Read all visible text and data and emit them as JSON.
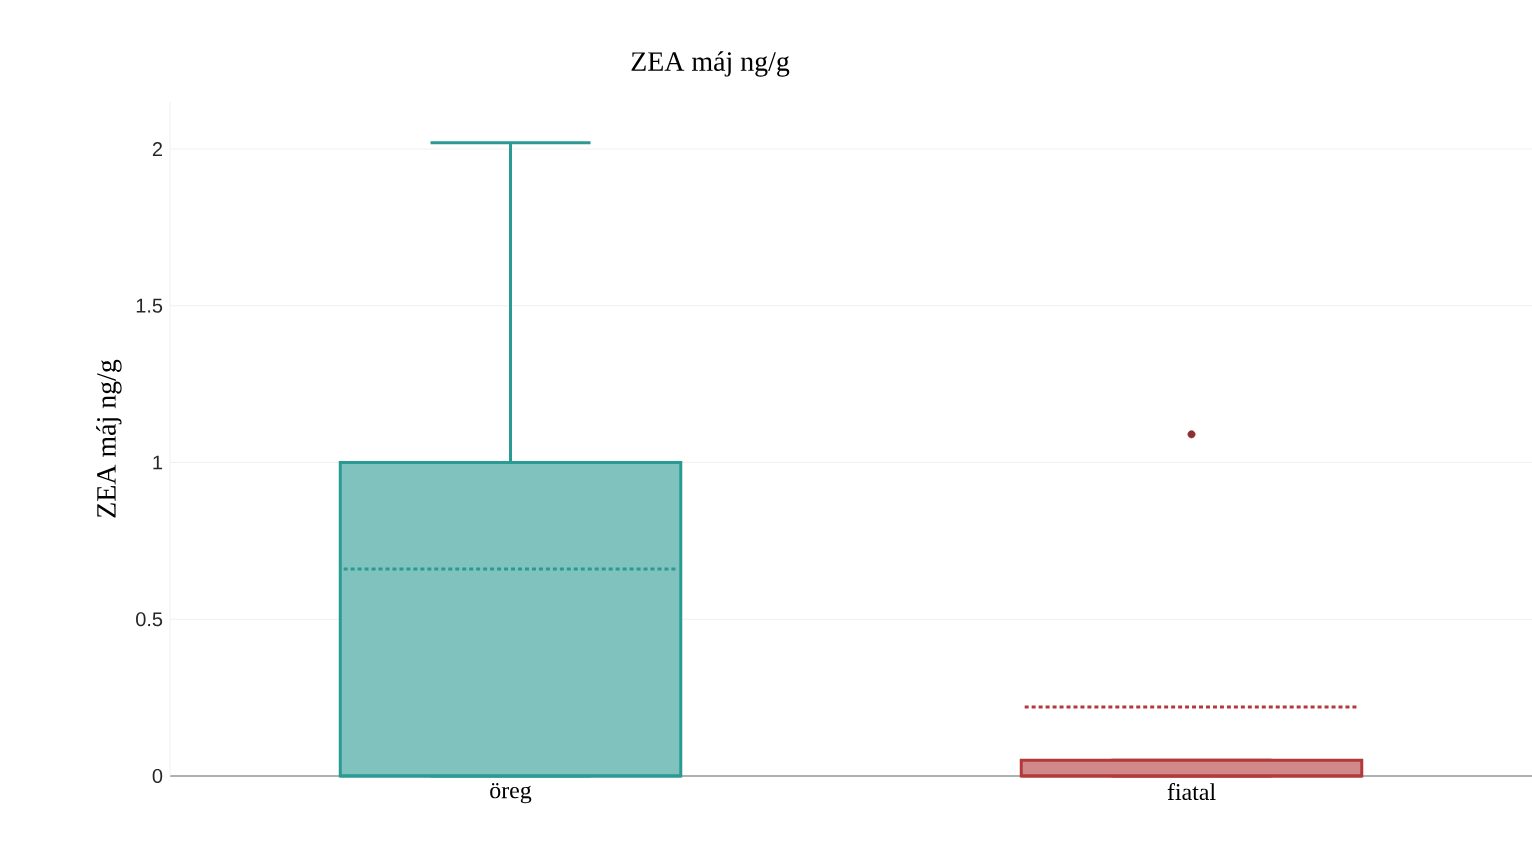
{
  "chart_data": {
    "type": "box",
    "title": "ZEA máj ng/g",
    "ylabel": "ZEA máj ng/g",
    "categories": [
      "öreg",
      "fiatal"
    ],
    "colors": [
      "#2a9a93",
      "#b23a3a"
    ],
    "boxes": [
      {
        "low": 0,
        "q1": 0,
        "median": 0,
        "q3": 1.0,
        "high": 2.02,
        "mean": 0.66
      },
      {
        "low": 0,
        "q1": 0,
        "median": 0,
        "q3": 0.05,
        "high": 0.05,
        "mean": 0.22,
        "outliers": [
          1.09
        ]
      }
    ],
    "ylim": [
      0,
      2.15
    ],
    "yticks": [
      0,
      0.5,
      1,
      1.5,
      2
    ],
    "grid": "y"
  }
}
